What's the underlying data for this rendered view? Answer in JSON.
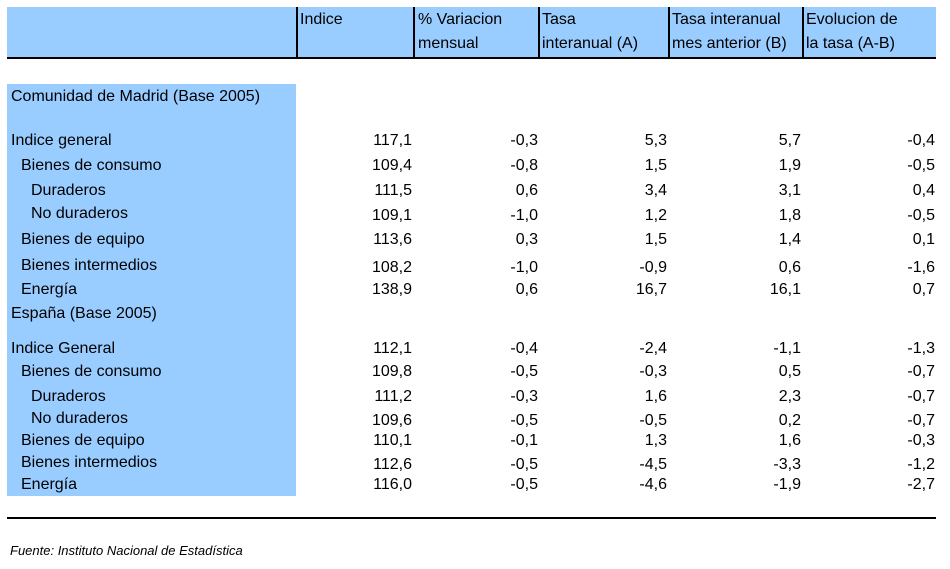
{
  "header": {
    "col1": [
      "Indice"
    ],
    "col2": [
      "% Variacion",
      "mensual"
    ],
    "col3": [
      "Tasa",
      "interanual (A)"
    ],
    "col4": [
      "Tasa interanual",
      "mes anterior (B)"
    ],
    "col5": [
      "Evolucion de",
      "la tasa (A-B)"
    ]
  },
  "colors": {
    "accent": "#99ccff"
  },
  "madrid": {
    "title": "Comunidad de Madrid (Base 2005)",
    "rows": [
      {
        "label": "Indice general",
        "indice": "117,1",
        "var": "-0,3",
        "tasa": "5,3",
        "tasa_ant": "5,7",
        "evol": "-0,4"
      },
      {
        "label": "Bienes de consumo",
        "indice": "109,4",
        "var": "-0,8",
        "tasa": "1,5",
        "tasa_ant": "1,9",
        "evol": "-0,5"
      },
      {
        "label": "Duraderos",
        "indice": "111,5",
        "var": "0,6",
        "tasa": "3,4",
        "tasa_ant": "3,1",
        "evol": "0,4"
      },
      {
        "label": "No duraderos",
        "indice": "109,1",
        "var": "-1,0",
        "tasa": "1,2",
        "tasa_ant": "1,8",
        "evol": "-0,5"
      },
      {
        "label": "Bienes de equipo",
        "indice": "113,6",
        "var": "0,3",
        "tasa": "1,5",
        "tasa_ant": "1,4",
        "evol": "0,1"
      },
      {
        "label": "Bienes intermedios",
        "indice": "108,2",
        "var": "-1,0",
        "tasa": "-0,9",
        "tasa_ant": "0,6",
        "evol": "-1,6"
      },
      {
        "label": "Energía",
        "indice": "138,9",
        "var": "0,6",
        "tasa": "16,7",
        "tasa_ant": "16,1",
        "evol": "0,7"
      }
    ]
  },
  "espana": {
    "title": "España (Base 2005)",
    "rows": [
      {
        "label": "Indice General",
        "indice": "112,1",
        "var": "-0,4",
        "tasa": "-2,4",
        "tasa_ant": "-1,1",
        "evol": "-1,3"
      },
      {
        "label": "Bienes de consumo",
        "indice": "109,8",
        "var": "-0,5",
        "tasa": "-0,3",
        "tasa_ant": "0,5",
        "evol": "-0,7"
      },
      {
        "label": "Duraderos",
        "indice": "111,2",
        "var": "-0,3",
        "tasa": "1,6",
        "tasa_ant": "2,3",
        "evol": "-0,7"
      },
      {
        "label": "No duraderos",
        "indice": "109,6",
        "var": "-0,5",
        "tasa": "-0,5",
        "tasa_ant": "0,2",
        "evol": "-0,7"
      },
      {
        "label": "Bienes de equipo",
        "indice": "110,1",
        "var": "-0,1",
        "tasa": "1,3",
        "tasa_ant": "1,6",
        "evol": "-0,3"
      },
      {
        "label": "Bienes intermedios",
        "indice": "112,6",
        "var": "-0,5",
        "tasa": "-4,5",
        "tasa_ant": "-3,3",
        "evol": "-1,2"
      },
      {
        "label": "Energía",
        "indice": "116,0",
        "var": "-0,5",
        "tasa": "-4,6",
        "tasa_ant": "-1,9",
        "evol": "-2,7"
      }
    ]
  },
  "source": "Fuente: Instituto Nacional de Estadística"
}
